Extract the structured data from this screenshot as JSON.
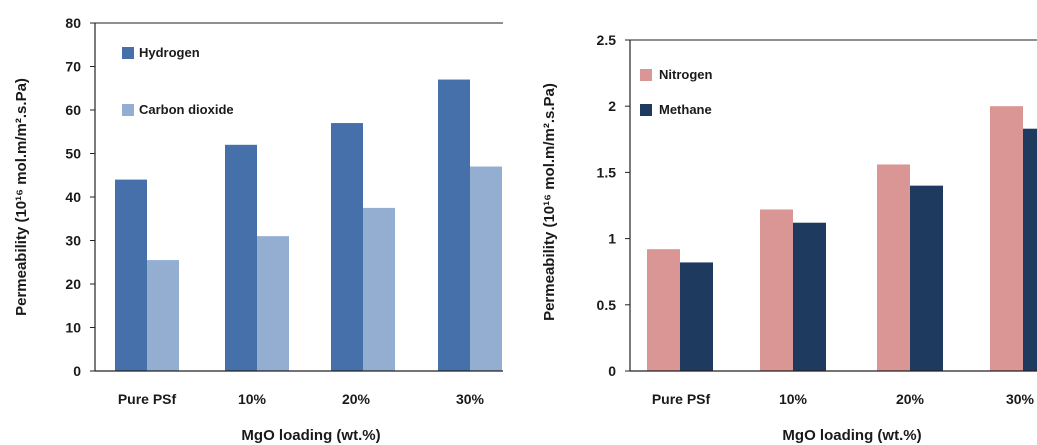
{
  "chart_data": [
    {
      "type": "bar",
      "categories": [
        "Pure PSf",
        "10%",
        "20%",
        "30%"
      ],
      "series": [
        {
          "name": "Hydrogen",
          "values": [
            44,
            52,
            57,
            67
          ],
          "color": "#4670AA"
        },
        {
          "name": "Carbon dioxide",
          "values": [
            25.5,
            31,
            37.5,
            47
          ],
          "color": "#94AED2"
        }
      ],
      "xlabel": "MgO loading (wt.%)",
      "ylabel": "Permeability (10¹⁶ mol.m/m².s.Pa)",
      "ylim": [
        0,
        80
      ],
      "yticks": [
        "0",
        "10",
        "20",
        "30",
        "40",
        "50",
        "60",
        "70",
        "80"
      ],
      "legend": "top-left",
      "grid": false
    },
    {
      "type": "bar",
      "categories": [
        "Pure PSf",
        "10%",
        "20%",
        "30%"
      ],
      "series": [
        {
          "name": "Nitrogen",
          "values": [
            0.92,
            1.22,
            1.56,
            2.0
          ],
          "color": "#D99694"
        },
        {
          "name": "Methane",
          "values": [
            0.82,
            1.12,
            1.4,
            1.83
          ],
          "color": "#1F3A5F"
        }
      ],
      "xlabel": "MgO loading (wt.%)",
      "ylabel": "Permeability (10¹⁶ mol.m/m².s.Pa)",
      "ylim": [
        0,
        2.5
      ],
      "yticks": [
        "0",
        "0.5",
        "1",
        "1.5",
        "2",
        "2.5"
      ],
      "legend": "top-left",
      "grid": false
    }
  ]
}
